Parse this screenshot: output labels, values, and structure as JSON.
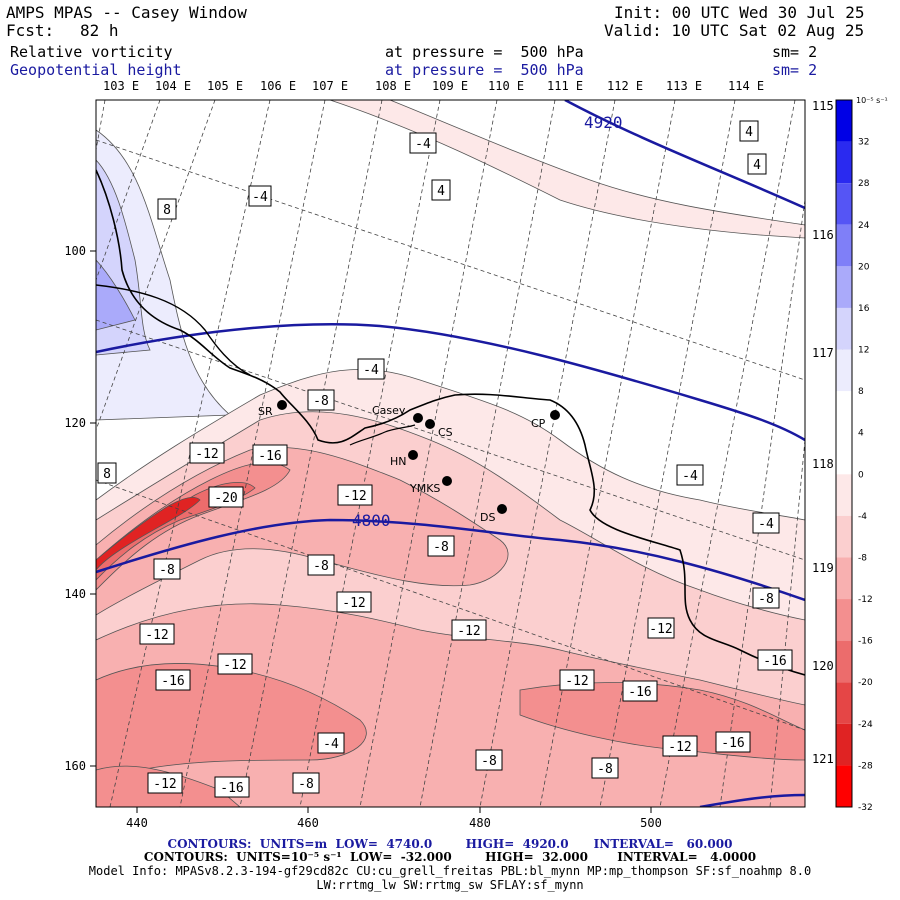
{
  "header": {
    "title": "AMPS MPAS -- Casey Window",
    "init": "Init: 00 UTC Wed 30 Jul 25",
    "fcst_label": "Fcst:",
    "fcst_value": "82 h",
    "valid": "Valid: 10 UTC Sat 02 Aug 25",
    "field1": "Relative vorticity",
    "field1_level": "at pressure =  500 hPa",
    "field1_sm": "sm= 2",
    "field2": "Geopotential height",
    "field2_level": "at pressure =  500 hPa",
    "field2_sm": "sm= 2"
  },
  "lon_top": [
    "103 E",
    "104 E",
    "105 E",
    "106 E",
    "107 E",
    "108 E",
    "109 E",
    "110 E",
    "111 E",
    "112 E",
    "113 E",
    "114 E"
  ],
  "lon_right": [
    "115 E",
    "116 E",
    "117 E",
    "118 E",
    "119 E",
    "120 E",
    "121 E"
  ],
  "x_ticks": [
    "440",
    "460",
    "480",
    "500"
  ],
  "y_ticks": [
    "100",
    "120",
    "140",
    "160"
  ],
  "colorbar": {
    "unit": "10⁻⁵ s⁻¹",
    "labels": [
      "32",
      "28",
      "24",
      "20",
      "16",
      "12",
      "8",
      "4",
      "0",
      "-4",
      "-8",
      "-12",
      "-16",
      "-20",
      "-24",
      "-28",
      "-32"
    ],
    "colors": [
      "#0000e6",
      "#2a2af0",
      "#5555f5",
      "#7f7ff8",
      "#aaaafa",
      "#d4d4fc",
      "#ececfd",
      "#ffffff",
      "#ffffff",
      "#fde8e8",
      "#fbcfcf",
      "#f8b0b0",
      "#f38f8f",
      "#ec6c6c",
      "#e54646",
      "#e02323",
      "#ff0000"
    ]
  },
  "height_contour_labels": [
    "4920",
    "4800"
  ],
  "vorticity_labels": [
    "-4",
    "4",
    "4",
    "4",
    "-4",
    "8",
    "-4",
    "-8",
    "-16",
    "-12",
    "-20",
    "-12",
    "-8",
    "-4",
    "-4",
    "-8",
    "-8",
    "-12",
    "-12",
    "-8",
    "-12",
    "-12",
    "-16",
    "-12",
    "-16",
    "-16",
    "-12",
    "-16",
    "-12",
    "-4",
    "-8",
    "-8",
    "-12",
    "-16",
    "-8",
    "8"
  ],
  "stations": [
    "SR",
    "Casey",
    "CS",
    "HN",
    "YMKS",
    "CP",
    "DS"
  ],
  "footer": {
    "line1": "CONTOURS:  UNITS=m  LOW=  4740.0        HIGH=  4920.0      INTERVAL=   60.000",
    "line2": "CONTOURS:  UNITS=10⁻⁵ s⁻¹  LOW=  -32.000        HIGH=  32.000       INTERVAL=   4.0000",
    "line3": "Model Info: MPASv8.2.3-194-gf29cd82c CU:cu_grell_freitas PBL:bl_mynn MP:mp_thompson SF:sf_noahmp 8.0",
    "line4": "LW:rrtmg_lw SW:rrtmg_sw SFLAY:sf_mynn"
  }
}
